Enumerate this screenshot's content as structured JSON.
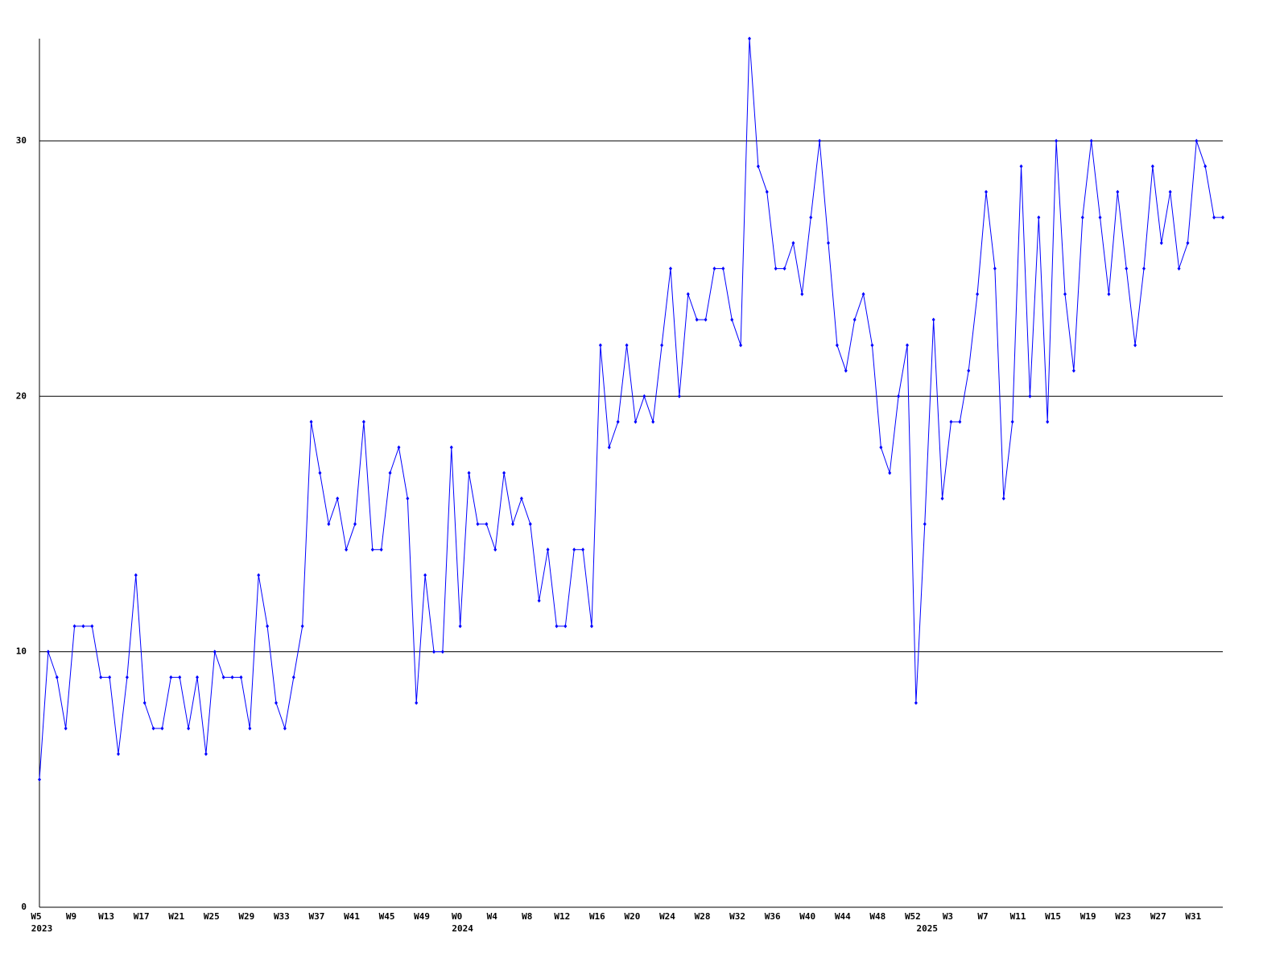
{
  "chart_data": {
    "type": "line",
    "color": "#0000ff",
    "grid": true,
    "categories": [
      "W5",
      null,
      null,
      null,
      "W9",
      null,
      null,
      null,
      "W13",
      null,
      null,
      null,
      "W17",
      null,
      null,
      null,
      "W21",
      null,
      null,
      null,
      "W25",
      null,
      null,
      null,
      "W29",
      null,
      null,
      null,
      "W33",
      null,
      null,
      null,
      "W37",
      null,
      null,
      null,
      "W41",
      null,
      null,
      null,
      "W45",
      null,
      null,
      null,
      "W49",
      null,
      null,
      null,
      "W0",
      null,
      null,
      null,
      "W4",
      null,
      null,
      null,
      "W8",
      null,
      null,
      null,
      "W12",
      null,
      null,
      null,
      "W16",
      null,
      null,
      null,
      "W20",
      null,
      null,
      null,
      "W24",
      null,
      null,
      null,
      "W28",
      null,
      null,
      null,
      "W32",
      null,
      null,
      null,
      "W36",
      null,
      null,
      null,
      "W40",
      null,
      null,
      null,
      "W44",
      null,
      null,
      null,
      "W48",
      null,
      null,
      null,
      "W52",
      null,
      null,
      null,
      "W3",
      null,
      null,
      null,
      "W7",
      null,
      null,
      null,
      "W11",
      null,
      null,
      null,
      "W15",
      null,
      null,
      null,
      "W19",
      null,
      null,
      null,
      "W23",
      null,
      null,
      null,
      "W27",
      null,
      null,
      null,
      "W31",
      null,
      null,
      null
    ],
    "year_labels": [
      "2023",
      null,
      null,
      null,
      null,
      null,
      null,
      null,
      null,
      null,
      null,
      null,
      null,
      null,
      null,
      null,
      null,
      null,
      null,
      null,
      null,
      null,
      null,
      null,
      null,
      null,
      null,
      null,
      null,
      null,
      null,
      null,
      null,
      null,
      null,
      null,
      null,
      null,
      null,
      null,
      null,
      null,
      null,
      null,
      null,
      null,
      null,
      null,
      "2024",
      null,
      null,
      null,
      null,
      null,
      null,
      null,
      null,
      null,
      null,
      null,
      null,
      null,
      null,
      null,
      null,
      null,
      null,
      null,
      null,
      null,
      null,
      null,
      null,
      null,
      null,
      null,
      null,
      null,
      null,
      null,
      null,
      null,
      null,
      null,
      null,
      null,
      null,
      null,
      null,
      null,
      null,
      null,
      null,
      null,
      null,
      null,
      null,
      null,
      null,
      null,
      null,
      "2025",
      null,
      null,
      null,
      null,
      null,
      null,
      null,
      null,
      null,
      null,
      null,
      null,
      null,
      null,
      null,
      null,
      null,
      null,
      null,
      null,
      null,
      null,
      null,
      null,
      null,
      null,
      null,
      null,
      null,
      null,
      null,
      null,
      null,
      null
    ],
    "values": [
      5,
      10,
      9,
      7,
      11,
      11,
      11,
      9,
      9,
      6,
      9,
      13,
      8,
      7,
      7,
      9,
      9,
      7,
      9,
      6,
      10,
      9,
      9,
      9,
      7,
      13,
      11,
      8,
      7,
      9,
      11,
      19,
      17,
      15,
      16,
      14,
      15,
      19,
      14,
      14,
      17,
      18,
      16,
      8,
      13,
      10,
      10,
      18,
      11,
      17,
      15,
      15,
      14,
      17,
      15,
      16,
      15,
      12,
      14,
      11,
      11,
      14,
      14,
      11,
      22,
      18,
      19,
      22,
      19,
      20,
      19,
      22,
      25,
      20,
      24,
      23,
      23,
      25,
      25,
      23,
      22,
      34,
      29,
      28,
      25,
      25,
      26,
      24,
      27,
      30,
      26,
      22,
      21,
      23,
      24,
      22,
      18,
      17,
      20,
      22,
      8,
      15,
      23,
      16,
      19,
      19,
      21,
      24,
      28,
      25,
      16,
      19,
      29,
      20,
      27,
      19,
      30,
      24,
      21,
      27,
      30,
      27,
      24,
      28,
      25,
      22,
      25,
      29,
      26,
      28,
      25,
      26,
      30,
      29,
      27,
      27
    ],
    "ylim": [
      0,
      34
    ],
    "yticks": [
      0,
      10,
      20,
      30
    ]
  }
}
